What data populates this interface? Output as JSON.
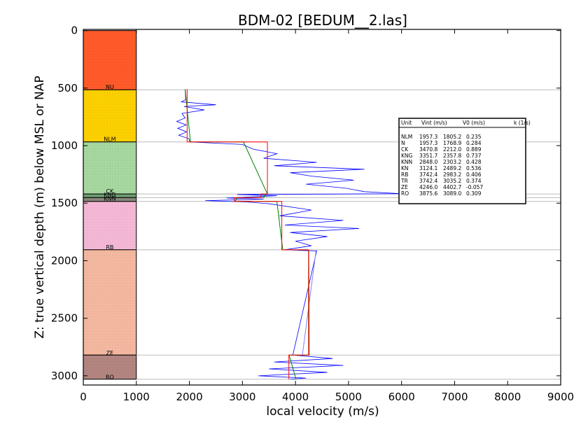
{
  "chart_data": {
    "type": "line",
    "title": "BDM-02 [BEDUM__2.las]",
    "xlabel": "local velocity (m/s)",
    "ylabel": "Z: true vertical depth (m) below MSL or NAP",
    "xlim": [
      0,
      9000
    ],
    "ylim": [
      3080,
      -10
    ],
    "y_inverted": true,
    "x_ticks": [
      0,
      1000,
      2000,
      3000,
      4000,
      5000,
      6000,
      7000,
      8000,
      9000
    ],
    "y_ticks": [
      0,
      500,
      1000,
      1500,
      2000,
      2500,
      3000
    ],
    "grid": false,
    "layers": [
      {
        "unit": "NU",
        "top": 0,
        "base": 515,
        "color": "#ff5a2a"
      },
      {
        "unit": "NLM",
        "top": 515,
        "base": 968,
        "color": "#fdd000"
      },
      {
        "unit": "CK",
        "top": 968,
        "base": 1420,
        "color": "#a6d8a0"
      },
      {
        "unit": "KNG",
        "top": 1420,
        "base": 1452,
        "color": "#6e9e74"
      },
      {
        "unit": "KNN",
        "top": 1452,
        "base": 1485,
        "color": "#8a8a7c"
      },
      {
        "unit": "RB",
        "top": 1485,
        "base": 1905,
        "color": "#f4b8d6"
      },
      {
        "unit": "ZE",
        "top": 1905,
        "base": 2820,
        "color": "#f4b8a0"
      },
      {
        "unit": "RO",
        "top": 2820,
        "base": 3030,
        "color": "#b38580"
      }
    ],
    "layer_labels": [
      {
        "text": "NU",
        "depth": 490
      },
      {
        "text": "NLM",
        "depth": 943
      },
      {
        "text": "CK",
        "depth": 1395
      },
      {
        "text": "KNG",
        "depth": 1425
      },
      {
        "text": "KNN",
        "depth": 1460
      },
      {
        "text": "RB",
        "depth": 1882
      },
      {
        "text": "ZE",
        "depth": 2800
      },
      {
        "text": "RO",
        "depth": 3010
      }
    ],
    "boundary_lines": [
      515,
      968,
      1420,
      1452,
      1485,
      1905,
      2820,
      3030
    ],
    "interval_velocity": {
      "color": "#ff0000",
      "x": [
        1957.3,
        1957.3,
        3470.8,
        3470.8,
        3351.7,
        3351.7,
        2848.0,
        2848.0,
        3742.4,
        3742.4,
        4246.0,
        4246.0,
        3875.6,
        3875.6
      ],
      "y": [
        510,
        968,
        968,
        1420,
        1420,
        1452,
        1452,
        1485,
        1485,
        1905,
        1905,
        2820,
        2820,
        3030
      ]
    },
    "linear_model": {
      "color": "#008000",
      "x": [
        1920,
        2020,
        3020,
        3470,
        3440,
        3400,
        2900,
        2860,
        3650,
        3760,
        4250,
        4260,
        3880,
        4010
      ],
      "y": [
        510,
        968,
        968,
        1420,
        1420,
        1452,
        1452,
        1485,
        1485,
        1905,
        1905,
        2820,
        2820,
        3030
      ]
    },
    "smoothed_log": {
      "color": "#8080ff",
      "x": [
        4390,
        4130
      ],
      "y": [
        1905,
        2820
      ]
    },
    "log_trace": {
      "color": "#0000ff",
      "points": [
        [
          1920,
          510
        ],
        [
          1930,
          600
        ],
        [
          1850,
          620
        ],
        [
          2500,
          645
        ],
        [
          1900,
          660
        ],
        [
          2280,
          690
        ],
        [
          1860,
          720
        ],
        [
          1920,
          760
        ],
        [
          1760,
          790
        ],
        [
          1940,
          820
        ],
        [
          1780,
          850
        ],
        [
          1950,
          880
        ],
        [
          1800,
          910
        ],
        [
          1990,
          940
        ],
        [
          2010,
          968
        ],
        [
          3000,
          990
        ],
        [
          3200,
          1030
        ],
        [
          3650,
          1070
        ],
        [
          3400,
          1110
        ],
        [
          4400,
          1145
        ],
        [
          3600,
          1175
        ],
        [
          5300,
          1205
        ],
        [
          3900,
          1235
        ],
        [
          4300,
          1265
        ],
        [
          5100,
          1300
        ],
        [
          4200,
          1335
        ],
        [
          4950,
          1370
        ],
        [
          5300,
          1400
        ],
        [
          6000,
          1418
        ],
        [
          2900,
          1425
        ],
        [
          3650,
          1435
        ],
        [
          2700,
          1455
        ],
        [
          3400,
          1465
        ],
        [
          2300,
          1478
        ],
        [
          3100,
          1490
        ],
        [
          3500,
          1505
        ],
        [
          4300,
          1560
        ],
        [
          3700,
          1610
        ],
        [
          4900,
          1650
        ],
        [
          3800,
          1690
        ],
        [
          5200,
          1720
        ],
        [
          3900,
          1755
        ],
        [
          4600,
          1790
        ],
        [
          4000,
          1830
        ],
        [
          4300,
          1870
        ],
        [
          3800,
          1905
        ],
        [
          4400,
          1915
        ],
        [
          3950,
          2820
        ],
        [
          4700,
          2850
        ],
        [
          3600,
          2880
        ],
        [
          4900,
          2910
        ],
        [
          3500,
          2940
        ],
        [
          4600,
          2970
        ],
        [
          3300,
          3000
        ],
        [
          4200,
          3020
        ],
        [
          3900,
          3030
        ]
      ]
    },
    "table": {
      "header": [
        "Unit",
        "Vint (m/s)",
        "V0 (m/s)",
        "k (1/s)"
      ],
      "rows": [
        [
          "NLM",
          "1957.3",
          "1805.2",
          "0.235"
        ],
        [
          "N",
          "1957.3",
          "1768.9",
          "0.284"
        ],
        [
          "CK",
          "3470.8",
          "2212.0",
          "0.889"
        ],
        [
          "KNG",
          "3351.7",
          "2357.8",
          "0.737"
        ],
        [
          "KNN",
          "2848.0",
          "2303.2",
          "0.428"
        ],
        [
          "KN",
          "3124.1",
          "2489.2",
          "0.536"
        ],
        [
          "RB",
          "3742.4",
          "2983.2",
          "0.406"
        ],
        [
          "TR",
          "3742.4",
          "3035.2",
          "0.374"
        ],
        [
          "ZE",
          "4246.0",
          "4402.7",
          "-0.057"
        ],
        [
          "RO",
          "3875.6",
          "3089.0",
          "0.309"
        ]
      ]
    }
  }
}
